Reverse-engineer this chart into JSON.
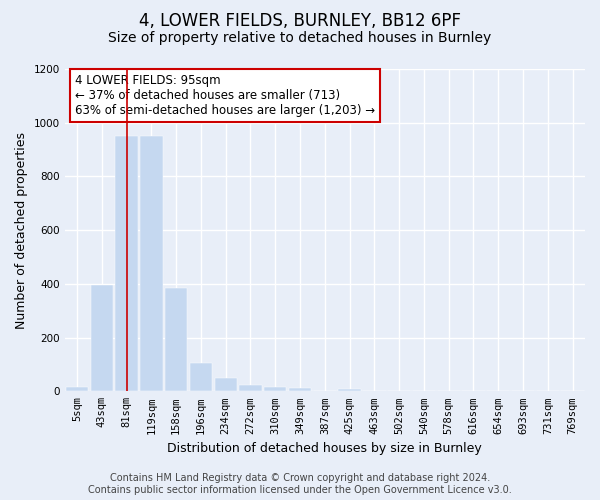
{
  "title": "4, LOWER FIELDS, BURNLEY, BB12 6PF",
  "subtitle": "Size of property relative to detached houses in Burnley",
  "xlabel": "Distribution of detached houses by size in Burnley",
  "ylabel": "Number of detached properties",
  "bar_color": "#c5d8f0",
  "bar_edge_color": "#c5d8f0",
  "categories": [
    "5sqm",
    "43sqm",
    "81sqm",
    "119sqm",
    "158sqm",
    "196sqm",
    "234sqm",
    "272sqm",
    "310sqm",
    "349sqm",
    "387sqm",
    "425sqm",
    "463sqm",
    "502sqm",
    "540sqm",
    "578sqm",
    "616sqm",
    "654sqm",
    "693sqm",
    "731sqm",
    "769sqm"
  ],
  "values": [
    15,
    395,
    950,
    950,
    385,
    105,
    50,
    25,
    15,
    13,
    0,
    10,
    0,
    0,
    0,
    0,
    0,
    0,
    0,
    0,
    0
  ],
  "ylim": [
    0,
    1200
  ],
  "yticks": [
    0,
    200,
    400,
    600,
    800,
    1000,
    1200
  ],
  "annotation_text": "4 LOWER FIELDS: 95sqm\n← 37% of detached houses are smaller (713)\n63% of semi-detached houses are larger (1,203) →",
  "annotation_box_color": "#ffffff",
  "annotation_box_edge_color": "#cc0000",
  "red_line_x": 2.0,
  "footer_line1": "Contains HM Land Registry data © Crown copyright and database right 2024.",
  "footer_line2": "Contains public sector information licensed under the Open Government Licence v3.0.",
  "background_color": "#e8eef8",
  "plot_bg_color": "#e8eef8",
  "grid_color": "#ffffff",
  "title_fontsize": 12,
  "subtitle_fontsize": 10,
  "axis_label_fontsize": 9,
  "tick_fontsize": 7.5,
  "footer_fontsize": 7,
  "annotation_fontsize": 8.5
}
